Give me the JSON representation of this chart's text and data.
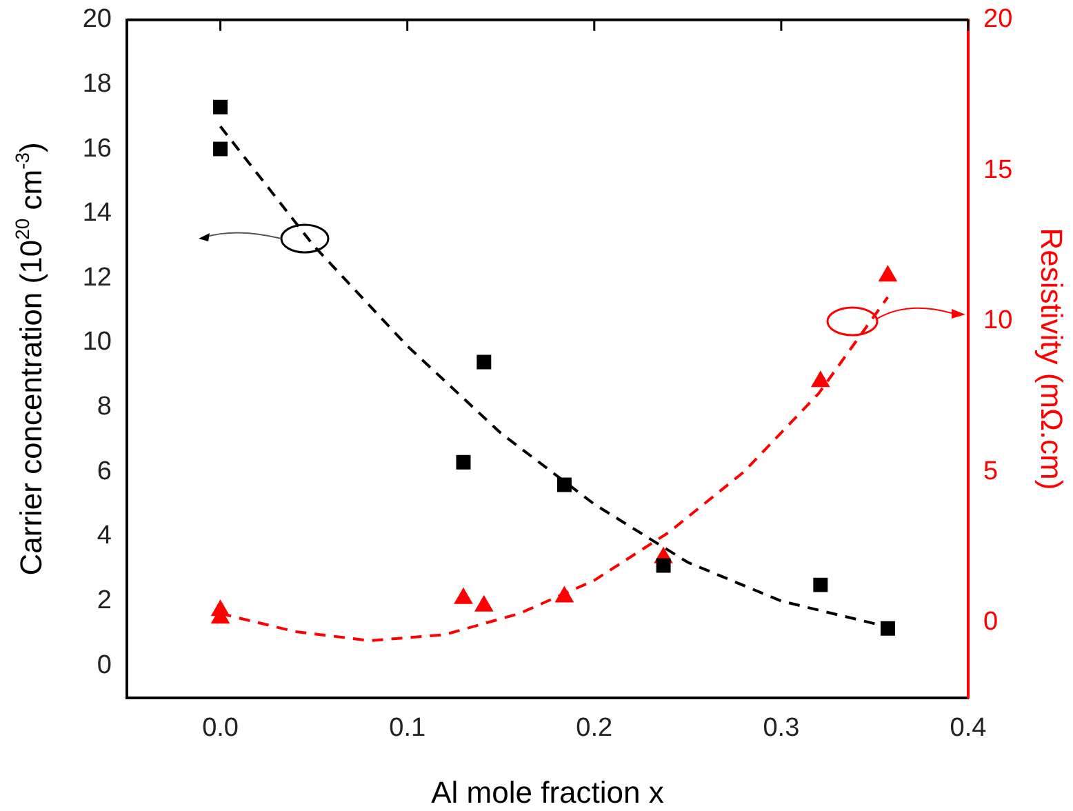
{
  "chart_data": {
    "type": "scatter",
    "xlabel": "Al mole fraction x",
    "ylabel": "Carrier concentration (10$^{20}$ cm$^{-3}$)",
    "y2label": "Resistivity (mΩ.cm)",
    "xlim": [
      -0.05,
      0.4
    ],
    "xticks": [
      {
        "value": 0,
        "label": "0.0"
      },
      0.1,
      0.2,
      0.3,
      0.4
    ],
    "ylim": [
      -1,
      20
    ],
    "yticks": [
      0,
      2,
      4,
      6,
      8,
      10,
      12,
      14,
      16,
      18,
      20
    ],
    "y2lim": [
      -2.5,
      20
    ],
    "y2ticks": [
      0,
      5,
      10,
      15,
      20
    ],
    "grid": false,
    "legend": false,
    "series": [
      {
        "marker": "square",
        "color": "#000000",
        "x": [
          0,
          0.141,
          0.321
        ],
        "values": [
          17.3,
          9.4,
          2.5
        ]
      },
      {
        "marker": "square",
        "color": "#000000",
        "x": [
          0,
          0.13,
          0.184,
          0.237,
          0.357
        ],
        "values": [
          16,
          6.3,
          5.6,
          3.1,
          1.15
        ]
      },
      {
        "marker": "triangle",
        "axis": "y2",
        "color": "#ff0000",
        "x": [
          0,
          0.141,
          0.321
        ],
        "values": [
          0.4,
          0.55,
          8
        ]
      },
      {
        "marker": "triangle",
        "axis": "y2",
        "color": "#ff0000",
        "x": [
          0,
          0.13,
          0.184,
          0.237,
          0.357
        ],
        "values": [
          0.15,
          0.8,
          0.85,
          2.15,
          11.5
        ]
      },
      {
        "type": "line",
        "line_style": "dashed",
        "marker": "none",
        "color": "#000000",
        "x": [
          0,
          0.05,
          0.1,
          0.15,
          0.2,
          0.25,
          0.3,
          0.357
        ],
        "values": [
          16.7,
          13,
          9.9,
          7.2,
          5,
          3.2,
          2,
          1.2
        ]
      },
      {
        "type": "line",
        "line_style": "dashed",
        "marker": "none",
        "axis": "y2",
        "color": "#ff0000",
        "x": [
          0,
          0.04,
          0.08,
          0.12,
          0.16,
          0.2,
          0.24,
          0.28,
          0.32,
          0.357
        ],
        "values": [
          0.3,
          -0.3,
          -0.6,
          -0.4,
          0.3,
          1.4,
          3,
          5,
          7.6,
          10.8
        ]
      }
    ]
  }
}
